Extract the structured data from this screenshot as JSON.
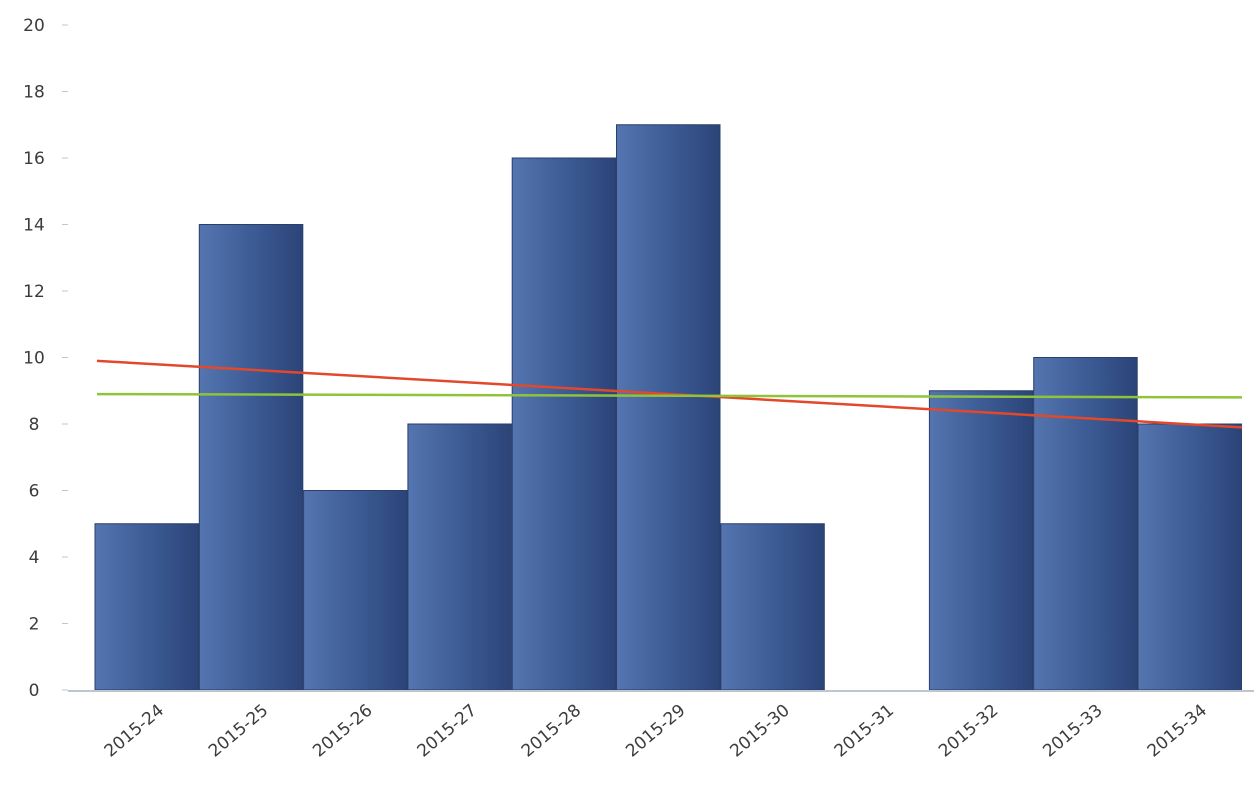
{
  "chart_data": {
    "type": "bar",
    "categories": [
      "2015-24",
      "2015-25",
      "2015-26",
      "2015-27",
      "2015-28",
      "2015-29",
      "2015-30",
      "2015-31",
      "2015-32",
      "2015-33",
      "2015-34"
    ],
    "values": [
      5,
      14,
      6,
      8,
      16,
      17,
      5,
      0,
      9,
      10,
      8
    ],
    "lines": [
      {
        "kind": "trend",
        "start": 9.9,
        "end": 7.9,
        "color": "#e2492b"
      },
      {
        "kind": "average",
        "start": 8.9,
        "end": 8.8,
        "color": "#8fc43a"
      }
    ],
    "ylim": [
      0,
      20
    ],
    "yticks": [
      0,
      2,
      4,
      6,
      8,
      10,
      12,
      14,
      16,
      18,
      20
    ],
    "title": "",
    "xlabel": "",
    "ylabel": "",
    "grid": false,
    "colors": {
      "bar": "#3d5c96",
      "bar_light": "#5575b0",
      "bar_dark": "#2b4478",
      "axis": "#bfc5cf",
      "text": "#3c3c3c"
    }
  }
}
